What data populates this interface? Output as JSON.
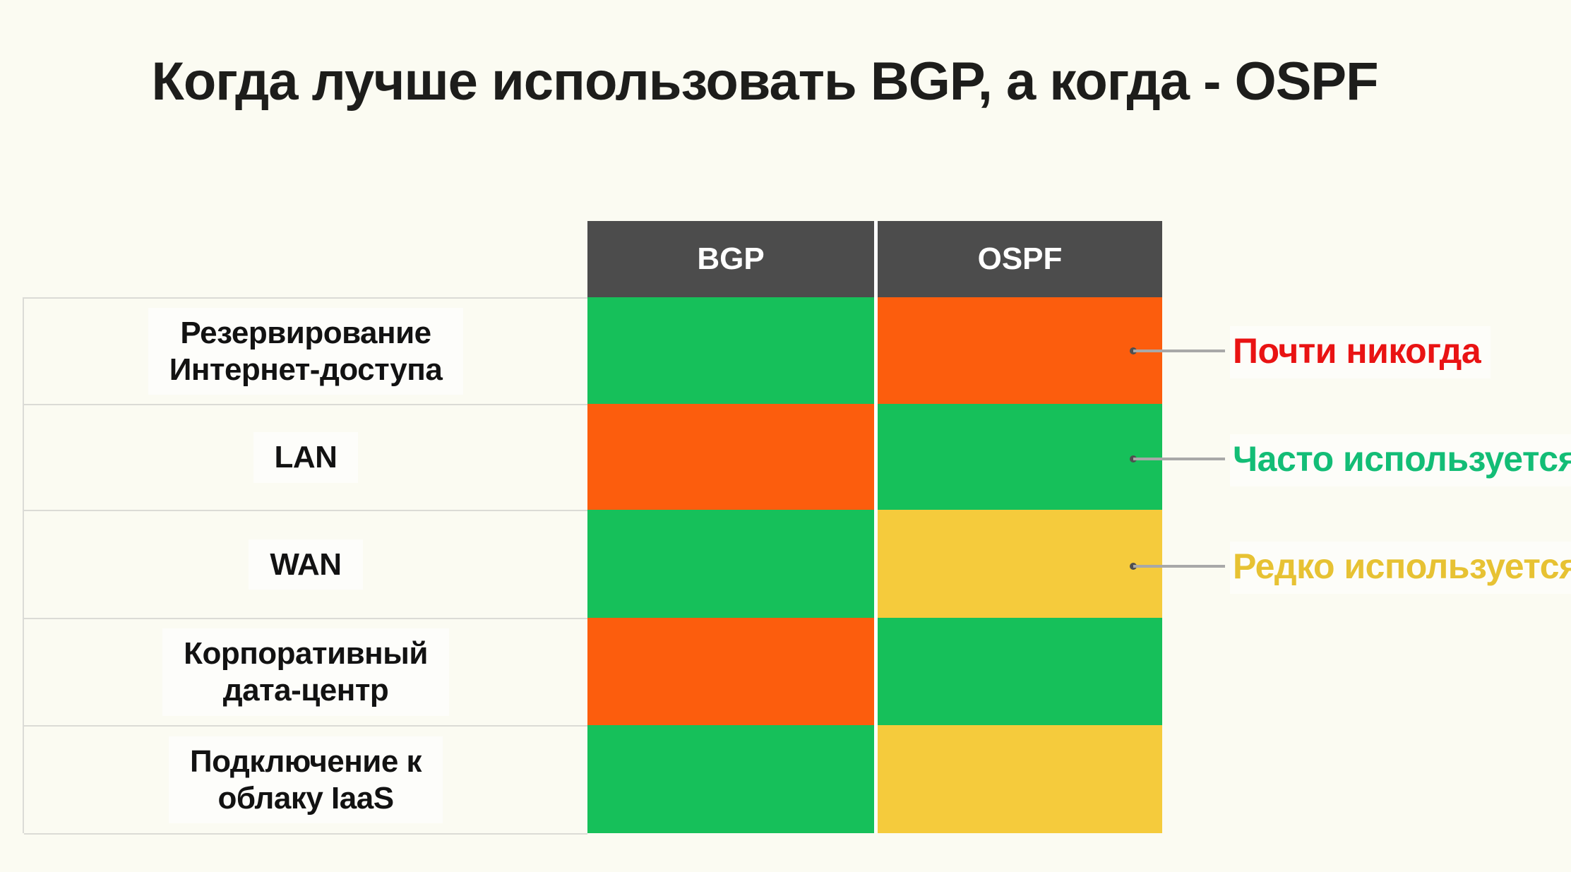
{
  "title": "Когда лучше использовать BGP, а когда - OSPF",
  "table": {
    "columns": [
      {
        "label": "BGP"
      },
      {
        "label": "OSPF"
      }
    ],
    "rows": [
      {
        "label_lines": [
          "Резервирование",
          "Интернет-доступа"
        ],
        "bgp": "often",
        "ospf": "almost_never"
      },
      {
        "label_lines": [
          "LAN"
        ],
        "bgp": "almost_never",
        "ospf": "often"
      },
      {
        "label_lines": [
          "WAN"
        ],
        "bgp": "often",
        "ospf": "rarely"
      },
      {
        "label_lines": [
          "Корпоративный",
          "дата-центр"
        ],
        "bgp": "almost_never",
        "ospf": "often"
      },
      {
        "label_lines": [
          "Подключение к",
          "облаку IaaS"
        ],
        "bgp": "often",
        "ospf": "rarely"
      }
    ]
  },
  "legend": [
    {
      "label": "Почти никогда",
      "status": "almost_never",
      "text_color": "#E91313"
    },
    {
      "label": "Часто используется",
      "status": "often",
      "text_color": "#13BD76"
    },
    {
      "label": "Редко используется",
      "status": "rarely",
      "text_color": "#E7C233"
    }
  ],
  "colors": {
    "often": "#16C05A",
    "rarely": "#F5CB3C",
    "almost_never": "#FC5D0D",
    "header_bg": "#4C4C4C",
    "header_text": "#FFFFFF",
    "background": "#FBFBF2",
    "grid_line": "#DBDBD6",
    "leader_line": "#A8A8A8",
    "leader_dot": "#4F4F4F",
    "title_text": "#1D1D1B",
    "label_text": "#121212"
  },
  "chart_data": {
    "type": "heatmap",
    "title": "Когда лучше использовать BGP, а когда - OSPF",
    "columns": [
      "BGP",
      "OSPF"
    ],
    "rows": [
      "Резервирование Интернет-доступа",
      "LAN",
      "WAN",
      "Корпоративный дата-центр",
      "Подключение к облаку IaaS"
    ],
    "values": [
      [
        "Часто используется",
        "Почти никогда"
      ],
      [
        "Почти никогда",
        "Часто используется"
      ],
      [
        "Часто используется",
        "Редко используется"
      ],
      [
        "Почти никогда",
        "Часто используется"
      ],
      [
        "Часто используется",
        "Редко используется"
      ]
    ],
    "legend_entries": [
      "Почти никогда",
      "Часто используется",
      "Редко используется"
    ],
    "legend_position": "right",
    "grid": false
  }
}
